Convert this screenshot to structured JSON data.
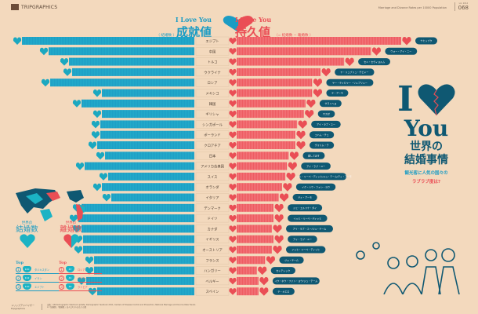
{
  "header": {
    "brand": "TRIPGRAPHICS",
    "subtitle_en": "Marriage and Divorce Rates per 10000 Population",
    "issue_label": "vol. 2014",
    "issue_number": "068"
  },
  "legend": {
    "left_title_en": "I Love You",
    "left_title_jp": "成就値",
    "left_sub": "（ 結婚数 ）",
    "right_title_en": "I Love You",
    "right_title_jp": "持久値",
    "right_sub": "（= 結婚数 − 離婚数 ）"
  },
  "title_block": {
    "line1": "I",
    "line2": "You",
    "jp1": "世界の",
    "jp2": "結婚事情",
    "question1": "観光客に人気の国々の",
    "question2": "ラブラブ度は?"
  },
  "world": {
    "marriage_small": "世界の",
    "marriage_large": "結婚数",
    "divorce_small": "世界の",
    "divorce_large": "離婚数",
    "top_label": "Top",
    "top_marriage": [
      {
        "rank": "1",
        "value": "120",
        "country": "タジキスタン"
      },
      {
        "rank": "2",
        "value": "112",
        "country": "イラン"
      },
      {
        "rank": "3",
        "value": "110",
        "country": "エジプト"
      }
    ],
    "top_divorce": [
      {
        "rank": "1",
        "value": "47",
        "country": "ロシア"
      },
      {
        "rank": "2",
        "value": "41",
        "country": "ベラルーシ"
      },
      {
        "rank": "3",
        "value": "40",
        "country": "ラトビア"
      }
    ]
  },
  "footer": {
    "brand": "トリップアドバイザー",
    "brand_sub": "tripgraphics",
    "source_line1": "出典：UN Demographic Yearbook update, Demographic Yearbook 2011, Centers of Disease Control and Prevention, National Marriage and Divorce Rate Trends",
    "source_line2": "※「結婚数」「離婚数」は人口1万人あたりの数"
  },
  "colors": {
    "background": "#f3d9bd",
    "marriage": "#1b9cc4",
    "endurance": "#ea4e55",
    "dark": "#0f5872"
  },
  "chart_data": {
    "type": "bar",
    "title": "I Love You 成就値 / I Love You 持久値",
    "xlabel": "",
    "ylabel": "",
    "categories": [
      "エジプト",
      "中国",
      "トルコ",
      "ウクライナ",
      "ロシア",
      "メキシコ",
      "韓国",
      "ギリシャ",
      "シンガポール",
      "ポーランド",
      "クロアチア",
      "日本",
      "アメリカ合衆国",
      "スイス",
      "オランダ",
      "イタリア",
      "デンマーク",
      "ドイツ",
      "カナダ",
      "イギリス",
      "オーストリア",
      "フランス",
      "ハンガリー",
      "ベルギー",
      "スペイン"
    ],
    "series": [
      {
        "name": "成就値（結婚数）",
        "values": [
          110,
          93,
          80,
          78,
          92,
          59,
          72,
          59,
          60,
          60,
          62,
          57,
          70,
          55,
          59,
          53,
          72,
          74,
          72,
          71,
          71,
          64,
          64,
          69,
          62
        ]
      },
      {
        "name": "持久値（結婚数 − 離婚数）",
        "values": [
          98,
          80,
          64,
          50,
          45,
          45,
          41,
          40,
          36,
          35,
          35,
          31,
          30,
          29,
          27,
          25,
          22,
          22,
          21,
          22,
          21,
          17,
          12,
          13,
          13
        ]
      }
    ],
    "bubble_phrases": [
      "ウヒッブク",
      "ウォー・アイ・ニー",
      "セニ・セヴィヨルム",
      "ヤ・リュブリュ・チビャー",
      "ヤー・ティビャー・リュブリュー",
      "テ・アーモ",
      "サランヘヨ",
      "サガポ",
      "アイ・ラブ・ユー",
      "コハム・チェ",
      "ヴォリム・テ",
      "愛してます",
      "アイ・ラブ・ユー",
      "イッヒ・リーベ・ディッヒ/ジュ・テーム/ティ・アーモ",
      "イク・ハウ・ファン・ヨウ",
      "ティ・アーモ",
      "ジェ・エルスケ・ダイ",
      "イッヒ・リーベ・ディッヒ",
      "アイ・ラブ・ユー/ジュ・テーム",
      "アイ・ラブ・ユー",
      "イッヒ・リーベ・ディッヒ",
      "ジュ・テーム",
      "セレテレック",
      "イク・ホウ・ファン・ヨウ/ジュ・テーム",
      "テ・キエロ"
    ]
  }
}
